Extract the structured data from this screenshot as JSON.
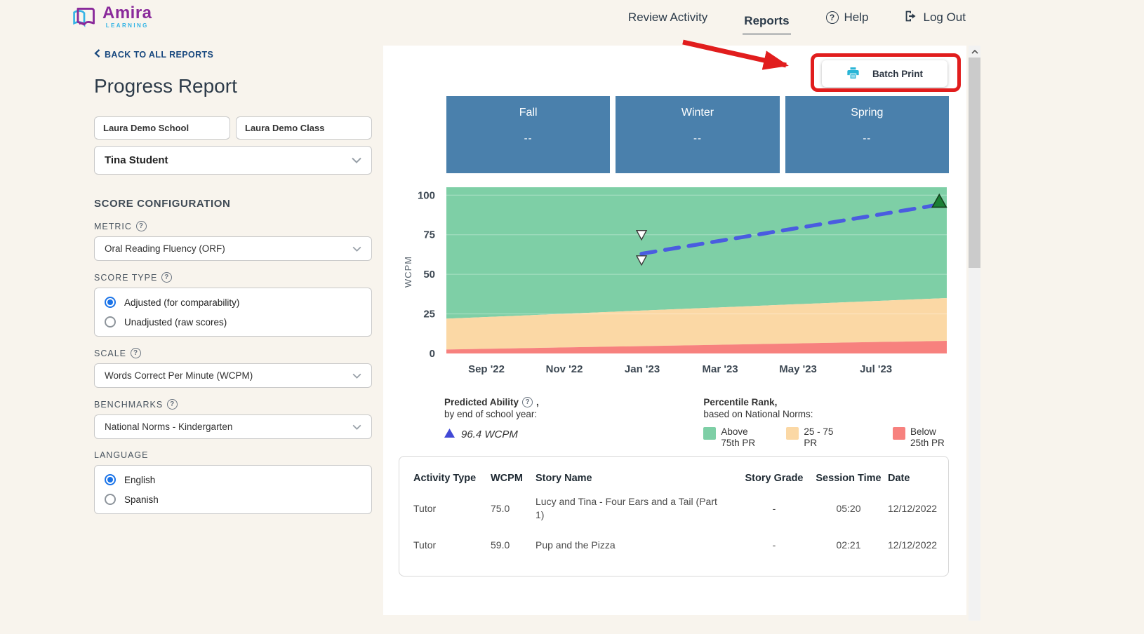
{
  "brand": {
    "name": "Amira",
    "sub": "LEARNING"
  },
  "nav": {
    "review_activity": "Review Activity",
    "reports": "Reports",
    "help": "Help",
    "logout": "Log Out"
  },
  "sidebar": {
    "back_link": "BACK TO ALL REPORTS",
    "title": "Progress Report",
    "school": "Laura Demo School",
    "class": "Laura Demo Class",
    "student": "Tina Student",
    "section_title": "SCORE CONFIGURATION",
    "metric": {
      "label": "METRIC",
      "value": "Oral Reading Fluency (ORF)"
    },
    "score_type": {
      "label": "SCORE TYPE",
      "options": [
        {
          "label": "Adjusted (for comparability)",
          "selected": true
        },
        {
          "label": "Unadjusted (raw scores)",
          "selected": false
        }
      ]
    },
    "scale": {
      "label": "SCALE",
      "value": "Words Correct Per Minute (WCPM)"
    },
    "benchmarks": {
      "label": "BENCHMARKS",
      "value": "National Norms - Kindergarten"
    },
    "language": {
      "label": "LANGUAGE",
      "options": [
        {
          "label": "English",
          "selected": true
        },
        {
          "label": "Spanish",
          "selected": false
        }
      ]
    }
  },
  "report": {
    "batch_print": "Batch Print",
    "season_card_color": "#4a80ac",
    "seasons": [
      {
        "name": "Fall",
        "value": "--"
      },
      {
        "name": "Winter",
        "value": "--"
      },
      {
        "name": "Spring",
        "value": "--"
      }
    ],
    "predicted": {
      "title": "Predicted Ability",
      "title_suffix": ",",
      "subtitle": "by end of school year:",
      "value": "96.4 WCPM",
      "marker_color": "#4149d6"
    },
    "percentile": {
      "title": "Percentile Rank,",
      "subtitle": "based on National Norms:",
      "legend": [
        {
          "label": "Above 75th PR",
          "color": "#7ecfa6"
        },
        {
          "label": "25 - 75 PR",
          "color": "#fbd8a5"
        },
        {
          "label": "Below 25th PR",
          "color": "#f7817e"
        }
      ]
    }
  },
  "chart_data": {
    "type": "area",
    "ylabel": "WCPM",
    "ylim": [
      0,
      105
    ],
    "y_ticks": [
      0,
      25,
      50,
      75,
      100
    ],
    "x_ticks": [
      "Sep '22",
      "Nov '22",
      "Jan '23",
      "Mar '23",
      "May '23",
      "Jul '23"
    ],
    "x_first_frac": 0.08,
    "x_step_frac": 0.1557,
    "bands": [
      {
        "name": "Above 75th PR",
        "color": "#7ecfa6",
        "upper": [
          105,
          105
        ],
        "lower": [
          22,
          35
        ]
      },
      {
        "name": "25 - 75 PR",
        "color": "#fbd8a5",
        "upper": [
          22,
          35
        ],
        "lower": [
          2.5,
          8
        ]
      },
      {
        "name": "Below 25th PR",
        "color": "#f7817e",
        "upper": [
          2.5,
          8
        ],
        "lower": [
          0,
          0
        ]
      }
    ],
    "scores": [
      {
        "x_frac": 0.39,
        "wcpm": 75.0,
        "date": "12/12/2022"
      },
      {
        "x_frac": 0.39,
        "wcpm": 59.0,
        "date": "12/12/2022"
      }
    ],
    "predicted_line": {
      "start": {
        "x_frac": 0.39,
        "wcpm": 63
      },
      "end": {
        "x_frac": 0.985,
        "wcpm": 94
      },
      "color": "#4a5ce0"
    },
    "predicted_marker": {
      "x_frac": 0.985,
      "wcpm": 96.4,
      "fill": "#1b7f35",
      "stroke": "#123f1c"
    },
    "grid": true,
    "legend_position": "bottom"
  },
  "table": {
    "headers": [
      "Activity Type",
      "WCPM",
      "Story Name",
      "Story Grade",
      "Session Time",
      "Date"
    ],
    "rows": [
      {
        "activity_type": "Tutor",
        "wcpm": "75.0",
        "story_name": "Lucy and Tina - Four Ears and a Tail (Part 1)",
        "story_grade": "-",
        "session_time": "05:20",
        "date": "12/12/2022"
      },
      {
        "activity_type": "Tutor",
        "wcpm": "59.0",
        "story_name": "Pup and the Pizza",
        "story_grade": "-",
        "session_time": "02:21",
        "date": "12/12/2022"
      }
    ]
  }
}
